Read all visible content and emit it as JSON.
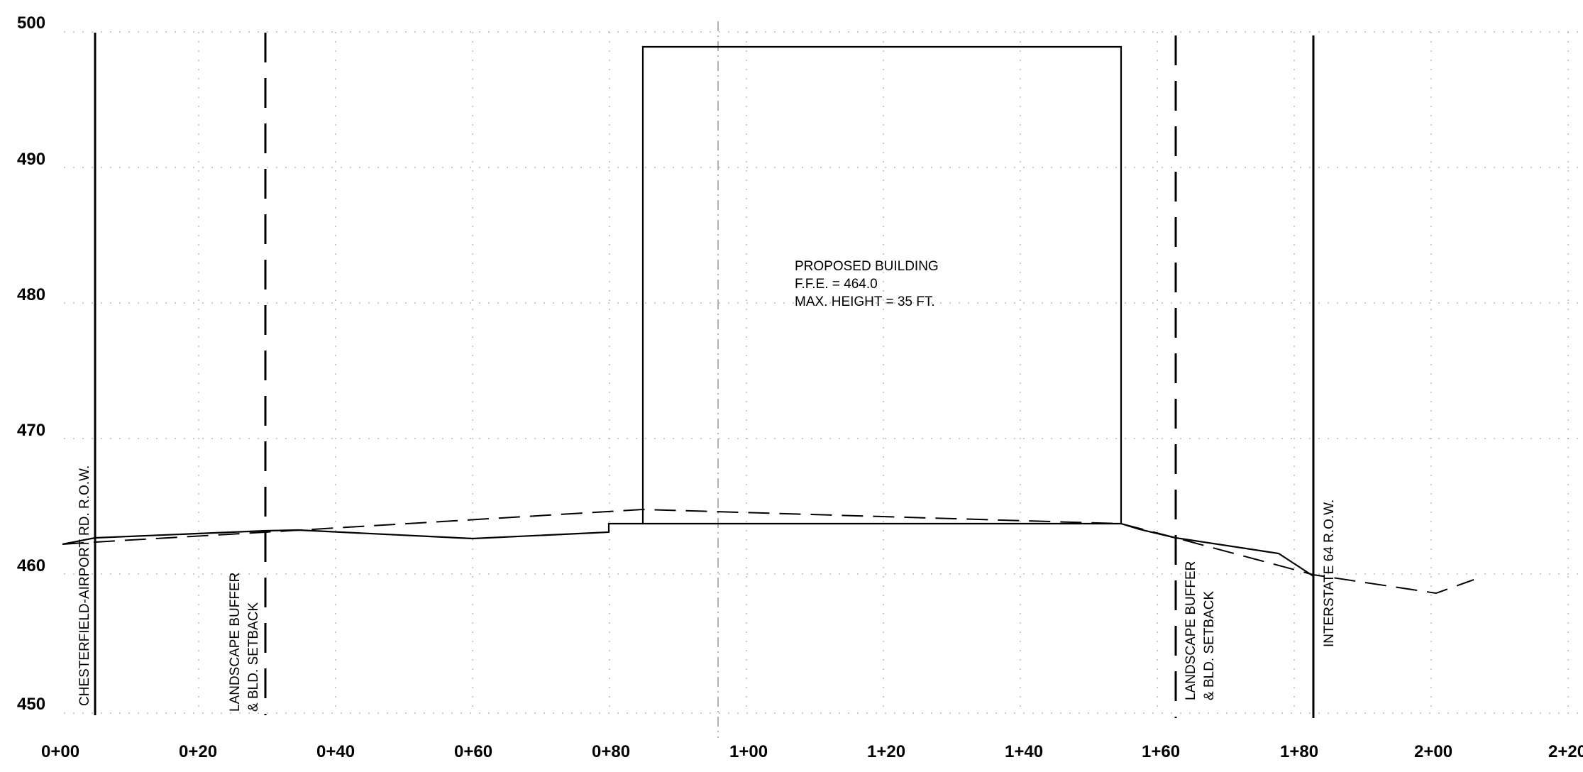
{
  "elevation_labels": [
    "500",
    "490",
    "480",
    "470",
    "460",
    "450"
  ],
  "station_labels": [
    "0+00",
    "0+20",
    "0+40",
    "0+60",
    "0+80",
    "1+00",
    "1+20",
    "1+40",
    "1+60",
    "1+80",
    "2+00",
    "2+20"
  ],
  "building": {
    "line1": "PROPOSED BUILDING",
    "line2": "F.F.E. = 464.0",
    "line3": "MAX. HEIGHT = 35 FT."
  },
  "labels": {
    "chesterfield": "CHESTERFIELD-AIRPORT RD. R.O.W.",
    "buffer_left_1": "LANDSCAPE BUFFER",
    "buffer_left_2": "& BLD. SETBACK",
    "buffer_right_1": "LANDSCAPE BUFFER",
    "buffer_right_2": "& BLD. SETBACK",
    "interstate": "INTERSTATE 64 R.O.W."
  }
}
